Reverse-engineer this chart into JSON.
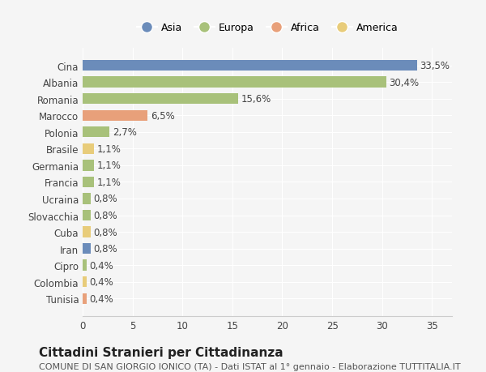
{
  "countries": [
    "Cina",
    "Albania",
    "Romania",
    "Marocco",
    "Polonia",
    "Brasile",
    "Germania",
    "Francia",
    "Ucraina",
    "Slovacchia",
    "Cuba",
    "Iran",
    "Cipro",
    "Colombia",
    "Tunisia"
  ],
  "values": [
    33.5,
    30.4,
    15.6,
    6.5,
    2.7,
    1.1,
    1.1,
    1.1,
    0.8,
    0.8,
    0.8,
    0.8,
    0.4,
    0.4,
    0.4
  ],
  "labels": [
    "33,5%",
    "30,4%",
    "15,6%",
    "6,5%",
    "2,7%",
    "1,1%",
    "1,1%",
    "1,1%",
    "0,8%",
    "0,8%",
    "0,8%",
    "0,8%",
    "0,4%",
    "0,4%",
    "0,4%"
  ],
  "continents": [
    "Asia",
    "Europa",
    "Europa",
    "Africa",
    "Europa",
    "America",
    "Europa",
    "Europa",
    "Europa",
    "Europa",
    "America",
    "Asia",
    "Europa",
    "America",
    "Africa"
  ],
  "continent_colors": {
    "Asia": "#6b8cba",
    "Europa": "#a8c17a",
    "Africa": "#e8a07a",
    "America": "#e8cc7a"
  },
  "legend_order": [
    "Asia",
    "Europa",
    "Africa",
    "America"
  ],
  "title": "Cittadini Stranieri per Cittadinanza",
  "subtitle": "COMUNE DI SAN GIORGIO IONICO (TA) - Dati ISTAT al 1° gennaio - Elaborazione TUTTITALIA.IT",
  "xlim": [
    0,
    37
  ],
  "xticks": [
    0,
    5,
    10,
    15,
    20,
    25,
    30,
    35
  ],
  "background_color": "#f5f5f5",
  "grid_color": "#ffffff",
  "bar_height": 0.65,
  "title_fontsize": 11,
  "subtitle_fontsize": 8,
  "tick_fontsize": 8.5,
  "label_fontsize": 8.5
}
